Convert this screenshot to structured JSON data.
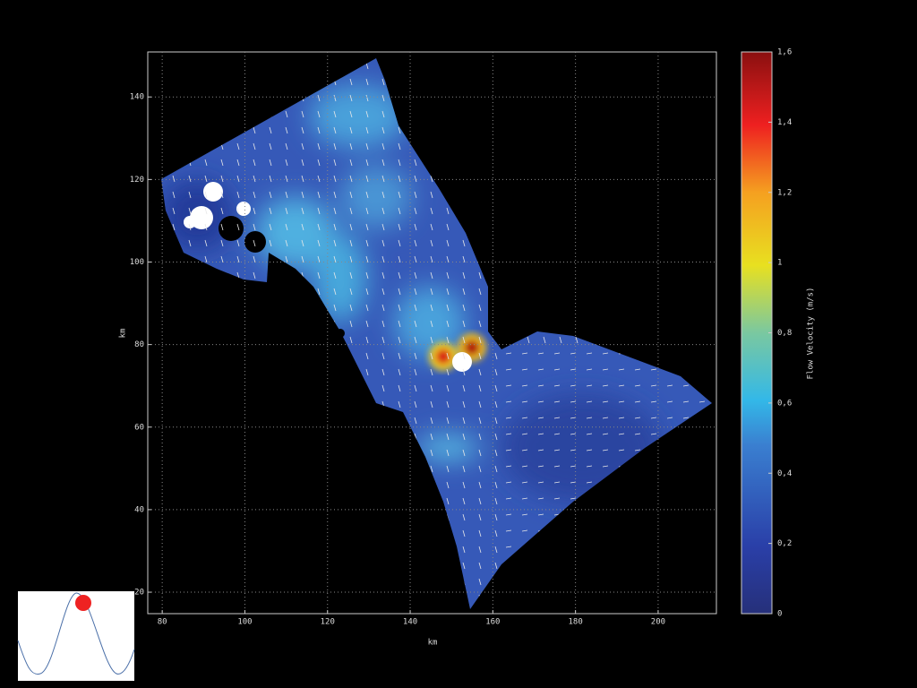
{
  "chart_data": {
    "type": "vector-field",
    "x_label": "km",
    "y_label": "km",
    "colorbar_label": "Flow Velocity (m/s)",
    "xlim": [
      76.5,
      214.1
    ],
    "ylim": [
      14.8,
      150.9
    ],
    "xticks": [
      80,
      100,
      120,
      140,
      160,
      180,
      200
    ],
    "yticks": [
      20,
      40,
      60,
      80,
      100,
      120,
      140
    ],
    "grid": true,
    "colorbar": {
      "lim": [
        0,
        1.6
      ],
      "ticks": [
        0,
        {
          "value": 0.2,
          "label": "0,2"
        },
        {
          "value": 0.4,
          "label": "0,4"
        },
        {
          "value": 0.6,
          "label": "0,6"
        },
        {
          "value": 0.8,
          "label": "0,8"
        },
        1,
        {
          "value": 1.2,
          "label": "1,2"
        },
        {
          "value": 1.4,
          "label": "1,4"
        },
        {
          "value": 1.6,
          "label": "1,6"
        }
      ]
    }
  }
}
